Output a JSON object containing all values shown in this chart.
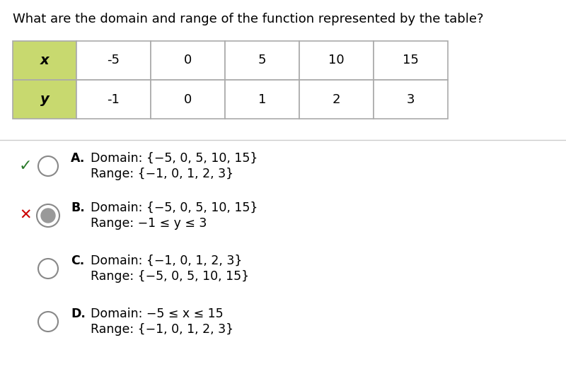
{
  "title": "What are the domain and range of the function represented by the table?",
  "table_x_label": "x",
  "table_y_label": "y",
  "x_values": [
    "-5",
    "0",
    "5",
    "10",
    "15"
  ],
  "y_values": [
    "-1",
    "0",
    "1",
    "2",
    "3"
  ],
  "header_bg_color": "#c8d96f",
  "table_border_color": "#aaaaaa",
  "options": [
    {
      "letter": "A.",
      "line1": "Domain: {−5, 0, 5, 10, 15}",
      "line2": "Range: {−1, 0, 1, 2, 3}",
      "correct": true,
      "selected": false
    },
    {
      "letter": "B.",
      "line1": "Domain: {−5, 0, 5, 10, 15}",
      "line2": "Range: −1 ≤ y ≤ 3",
      "correct": false,
      "selected": true
    },
    {
      "letter": "C.",
      "line1": "Domain: {−1, 0, 1, 2, 3}",
      "line2": "Range: {−5, 0, 5, 10, 15}",
      "correct": false,
      "selected": false
    },
    {
      "letter": "D.",
      "line1": "Domain: −5 ≤ x ≤ 15",
      "line2": "Range: {−1, 0, 1, 2, 3}",
      "correct": false,
      "selected": false
    }
  ],
  "bg_color": "#ffffff",
  "title_fontsize": 13,
  "option_fontsize": 12.5,
  "check_color": "#2a7a2a",
  "x_color": "#cc0000",
  "circle_edge_color": "#888888",
  "selected_fill_color": "#999999"
}
